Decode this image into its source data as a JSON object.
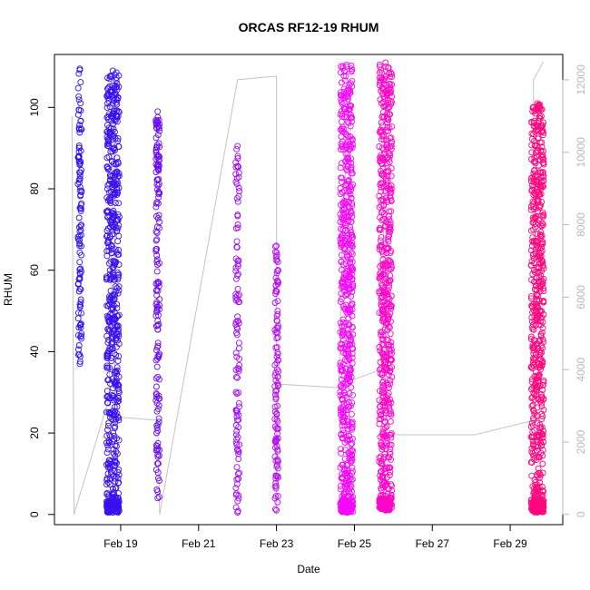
{
  "chart_data": {
    "type": "scatter",
    "title": "ORCAS RF12-19 RHUM",
    "xlabel": "Date",
    "ylabel": "RHUM",
    "xlim": [
      17.3,
      30.35
    ],
    "ylim": [
      -2.5,
      113
    ],
    "y2lim": [
      -280,
      12700
    ],
    "x_ticks": [
      {
        "value": 19,
        "label": "Feb 19"
      },
      {
        "value": 21,
        "label": "Feb 21"
      },
      {
        "value": 23,
        "label": "Feb 23"
      },
      {
        "value": 25,
        "label": "Feb 25"
      },
      {
        "value": 27,
        "label": "Feb 27"
      },
      {
        "value": 29,
        "label": "Feb 29"
      }
    ],
    "y_ticks": [
      0,
      20,
      40,
      60,
      80,
      100
    ],
    "y2_ticks": [
      0,
      2000,
      4000,
      6000,
      8000,
      10000,
      12000
    ],
    "series": [
      {
        "x": 17.95,
        "y_min": 37,
        "y_max": 109.5,
        "color": "#2d12ee",
        "density": "sparse"
      },
      {
        "x": 18.8,
        "y_min": 0.5,
        "y_max": 109,
        "color": "#3a10ec",
        "density": "dense"
      },
      {
        "x": 19.95,
        "y_min": 4,
        "y_max": 99,
        "color": "#6a0cf0",
        "density": "medium"
      },
      {
        "x": 22.0,
        "y_min": 0.5,
        "y_max": 90.5,
        "color": "#a00ff2",
        "density": "sparse"
      },
      {
        "x": 23.0,
        "y_min": 1,
        "y_max": 66,
        "color": "#b50cf0",
        "density": "sparse"
      },
      {
        "x": 24.8,
        "y_min": 0.5,
        "y_max": 110.5,
        "color": "#f40af8",
        "density": "dense"
      },
      {
        "x": 25.8,
        "y_min": 1,
        "y_max": 111,
        "color": "#fb08c8",
        "density": "dense"
      },
      {
        "x": 29.7,
        "y_min": 0.5,
        "y_max": 101,
        "color": "#fd077e",
        "density": "dense"
      }
    ],
    "altitude_track": [
      [
        17.75,
        11000
      ],
      [
        17.8,
        0
      ],
      [
        18.7,
        3200
      ],
      [
        18.85,
        12000
      ],
      [
        18.85,
        2700
      ],
      [
        19.95,
        2600
      ],
      [
        20.0,
        0
      ],
      [
        22.0,
        12000
      ],
      [
        23.0,
        12100
      ],
      [
        23.0,
        0
      ],
      [
        23.05,
        3600
      ],
      [
        24.6,
        3500
      ],
      [
        24.7,
        8000
      ],
      [
        24.9,
        11800
      ],
      [
        24.9,
        3700
      ],
      [
        25.7,
        4000
      ],
      [
        25.8,
        12200
      ],
      [
        25.8,
        2200
      ],
      [
        28.1,
        2200
      ],
      [
        29.6,
        2600
      ],
      [
        29.6,
        12000
      ],
      [
        29.85,
        12500
      ]
    ]
  }
}
